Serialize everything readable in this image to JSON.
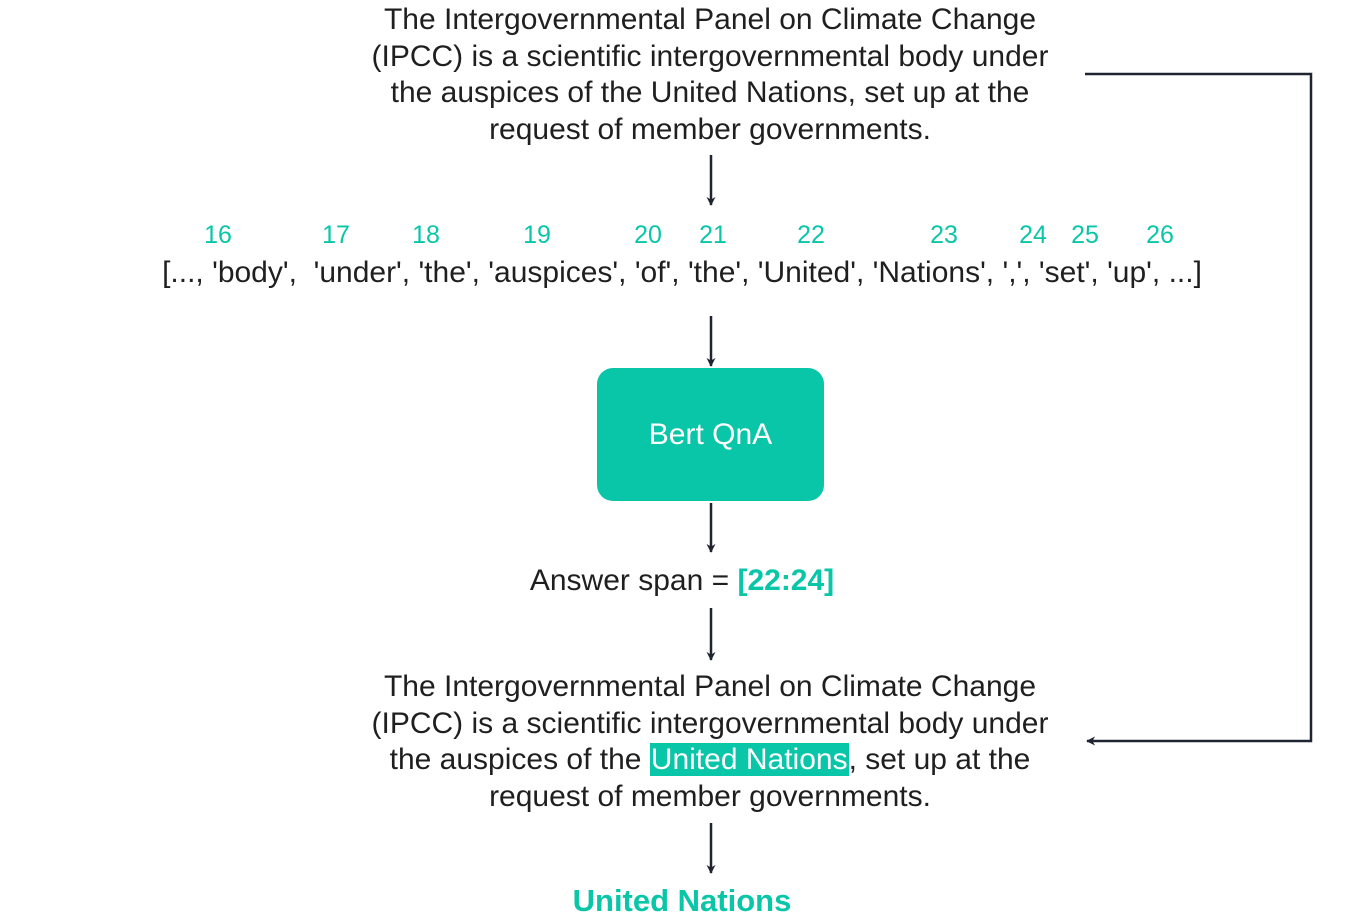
{
  "input_paragraph": {
    "lines": [
      "The Intergovernmental Panel on Climate Change",
      "(IPCC) is a scientific intergovernmental body under",
      "the auspices of the United Nations, set up at the",
      "request of member governments."
    ]
  },
  "token_indices": [
    "16",
    "17",
    "18",
    "19",
    "20",
    "21",
    "22",
    "23",
    "24",
    "25",
    "26"
  ],
  "token_list": "[..., 'body',  'under', 'the', 'auspices', 'of', 'the', 'United', 'Nations', ',', 'set', 'up', ...]",
  "model_box": {
    "label": "Bert QnA"
  },
  "answer": {
    "label": "Answer span = ",
    "value": "[22:24]"
  },
  "output_paragraph": {
    "line1": "The Intergovernmental Panel on Climate Change",
    "line2": "(IPCC) is a scientific intergovernmental body under",
    "line3_before": "the auspices of the ",
    "line3_highlight": "United Nations",
    "line3_after": ", set up at the",
    "line4": "request of member governments."
  },
  "final_answer": "United Nations",
  "colors": {
    "accent": "#0ac6a8",
    "text": "#1f1f1f",
    "arrow": "#1e2430"
  }
}
